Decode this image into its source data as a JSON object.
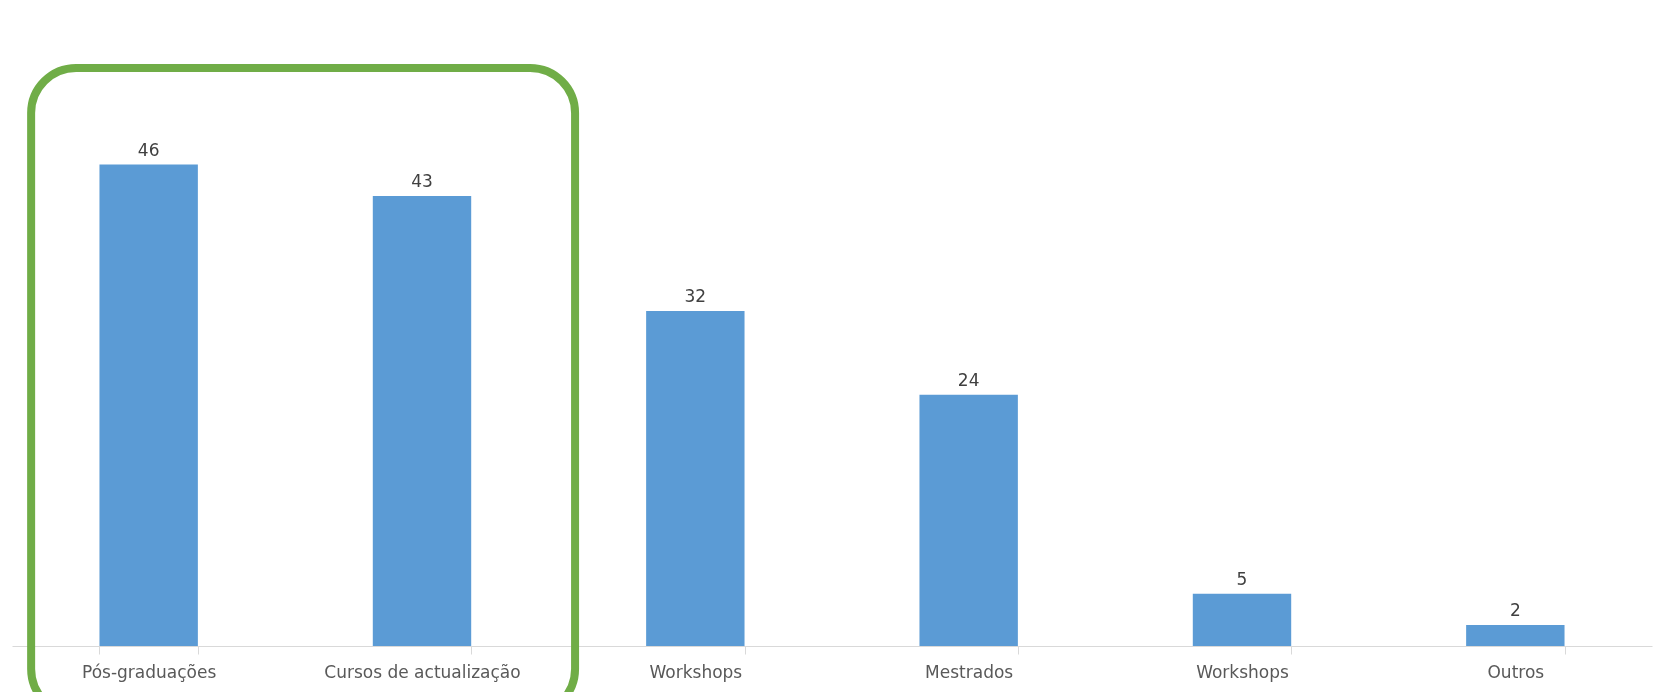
{
  "chart_data": {
    "type": "bar",
    "categories": [
      "Pós-graduações",
      "Cursos de actualização",
      "Workshops",
      "Mestrados",
      "Workshops",
      "Outros"
    ],
    "values": [
      46,
      43,
      32,
      24,
      5,
      2
    ],
    "color": "#5b9bd5",
    "data_labels": true,
    "grid": false
  }
}
